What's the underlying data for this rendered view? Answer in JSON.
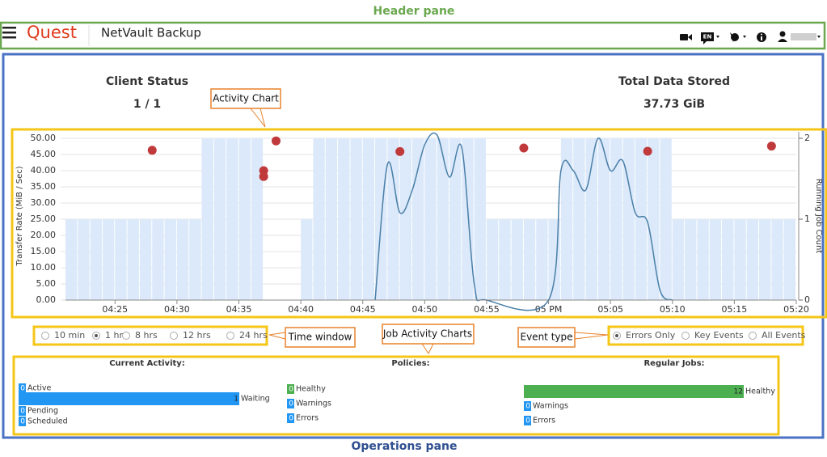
{
  "annotations": {
    "header_pane": "Header pane",
    "operations_pane": "Operations pane",
    "activity_chart": "Activity Chart",
    "time_window": "Time window",
    "job_activity_charts": "Job Activity Charts",
    "event_type": "Event type"
  },
  "header": {
    "logo": "Quest",
    "product": "NetVault Backup",
    "language": "EN"
  },
  "summary": {
    "client_status": {
      "label": "Client Status",
      "value": "1 / 1"
    },
    "total_data": {
      "label": "Total Data Stored",
      "value": "37.73 GiB"
    }
  },
  "chart_data": {
    "type": "combo",
    "ylabel": "Transfer Rate (MiB / Sec)",
    "y2label": "Running Job Count",
    "xlim": [
      "04:21",
      "05:20"
    ],
    "xticks": [
      "04:25",
      "04:30",
      "04:35",
      "04:40",
      "04:45",
      "04:50",
      "04:55",
      {
        "value": "05:00",
        "label": "05 PM"
      },
      "05:05",
      "05:10",
      "05:15",
      "05:20"
    ],
    "ylim": [
      0,
      52
    ],
    "yticks": [
      {
        "value": 0,
        "label": "0.00"
      },
      {
        "value": 5,
        "label": "5.00"
      },
      {
        "value": 10,
        "label": "10.00"
      },
      {
        "value": 15,
        "label": "15.00"
      },
      {
        "value": 20,
        "label": "20.00"
      },
      {
        "value": 25,
        "label": "25.00"
      },
      {
        "value": 30,
        "label": "30.00"
      },
      {
        "value": 35,
        "label": "35.00"
      },
      {
        "value": 40,
        "label": "40.00"
      },
      {
        "value": 45,
        "label": "45.00"
      },
      {
        "value": 50,
        "label": "50.00"
      }
    ],
    "y2lim": [
      0,
      2.08
    ],
    "y2ticks": [
      0,
      1,
      2
    ],
    "grid": true,
    "series": [
      {
        "type": "bar",
        "axis": "y2",
        "color": "#dbe9fa",
        "x": [
          "04:21",
          "04:22",
          "04:23",
          "04:24",
          "04:25",
          "04:26",
          "04:27",
          "04:28",
          "04:29",
          "04:30",
          "04:31",
          "04:32",
          "04:33",
          "04:34",
          "04:35",
          "04:36",
          "04:37",
          "04:38",
          "04:39",
          "04:40",
          "04:41",
          "04:42",
          "04:43",
          "04:44",
          "04:45",
          "04:46",
          "04:47",
          "04:48",
          "04:49",
          "04:50",
          "04:51",
          "04:52",
          "04:53",
          "04:54",
          "04:55",
          "04:56",
          "04:57",
          "04:58",
          "04:59",
          "05:00",
          "05:01",
          "05:02",
          "05:03",
          "05:04",
          "05:05",
          "05:06",
          "05:07",
          "05:08",
          "05:09",
          "05:10",
          "05:11",
          "05:12",
          "05:13",
          "05:14",
          "05:15",
          "05:16",
          "05:17",
          "05:18",
          "05:19"
        ],
        "values": [
          1,
          1,
          1,
          1,
          1,
          1,
          1,
          1,
          1,
          1,
          1,
          2,
          2,
          2,
          2,
          2,
          0,
          0,
          0,
          1,
          2,
          2,
          2,
          2,
          2,
          2,
          2,
          2,
          2,
          2,
          2,
          2,
          2,
          2,
          1,
          1,
          1,
          1,
          1,
          1,
          2,
          2,
          2,
          2,
          2,
          2,
          2,
          2,
          2,
          1,
          1,
          1,
          1,
          1,
          1,
          1,
          1,
          1,
          1
        ]
      },
      {
        "type": "line",
        "color": "#4a7fa8",
        "x": [
          "04:46",
          "04:47",
          "04:48",
          "04:49",
          "04:50",
          "04:51",
          "04:52",
          "04:53",
          "04:54",
          "04:55",
          "05:00",
          "05:01",
          "05:02",
          "05:03",
          "05:04",
          "05:05",
          "05:06",
          "05:07",
          "05:08",
          "05:09",
          "05:10"
        ],
        "values": [
          0,
          42,
          27,
          34,
          48,
          51,
          38,
          47,
          5,
          0,
          0,
          40,
          40,
          34,
          50,
          40,
          43,
          27,
          24,
          3,
          0
        ]
      },
      {
        "type": "scatter",
        "color": "#c0393b",
        "x": [
          "04:28",
          "04:37",
          "04:37",
          "04:38",
          "04:48",
          "04:58",
          "05:08",
          "05:18"
        ],
        "values": [
          46.3,
          40,
          38.2,
          49.2,
          45.9,
          47,
          46,
          47.6
        ]
      }
    ]
  },
  "time_window": {
    "options": [
      "10 min",
      "1 hr",
      "8 hrs",
      "12 hrs",
      "24 hrs"
    ],
    "selected": 1
  },
  "event_type": {
    "options": [
      "Errors Only",
      "Key Events",
      "All Events"
    ],
    "selected": 0
  },
  "job_activity": [
    {
      "title": "Current Activity:",
      "items": [
        {
          "label": "Active",
          "value": 0,
          "color": "#2196f3"
        },
        {
          "label": "Waiting",
          "value": 1,
          "color": "#2196f3"
        },
        {
          "label": "Pending",
          "value": 0,
          "color": "#2196f3"
        },
        {
          "label": "Scheduled",
          "value": 0,
          "color": "#2196f3"
        }
      ]
    },
    {
      "title": "Policies:",
      "items": [
        {
          "label": "Healthy",
          "value": 0,
          "color": "#4caf50"
        },
        {
          "label": "Warnings",
          "value": 0,
          "color": "#2196f3"
        },
        {
          "label": "Errors",
          "value": 0,
          "color": "#2196f3"
        }
      ]
    },
    {
      "title": "Regular Jobs:",
      "items": [
        {
          "label": "Healthy",
          "value": 12,
          "color": "#4caf50"
        },
        {
          "label": "Warnings",
          "value": 0,
          "color": "#2196f3"
        },
        {
          "label": "Errors",
          "value": 0,
          "color": "#2196f3"
        }
      ]
    }
  ]
}
